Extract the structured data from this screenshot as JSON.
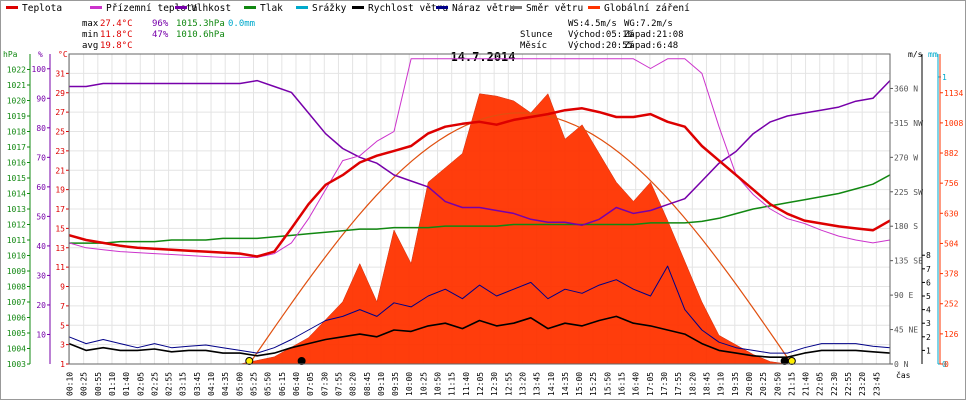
{
  "legend": [
    {
      "label": "Teplota",
      "color": "#dd0000"
    },
    {
      "label": "Přízemní teplota",
      "color": "#cc33cc"
    },
    {
      "label": "Vlhkost",
      "color": "#7700aa"
    },
    {
      "label": "Tlak",
      "color": "#118811"
    },
    {
      "label": "Srážky",
      "color": "#00aacc"
    },
    {
      "label": "Rychlost větru",
      "color": "#000000"
    },
    {
      "label": "Náraz větru",
      "color": "#000088"
    },
    {
      "label": "Směr větru",
      "color": "#777777"
    },
    {
      "label": "Globální záření",
      "color": "#ff3300"
    }
  ],
  "stats": {
    "max_label": "max",
    "max_temp": "27.4°C",
    "max_hum": "96%",
    "max_press": "1015.3hPa",
    "rain": "0.0mm",
    "min_label": "min",
    "min_temp": "11.8°C",
    "min_hum": "47%",
    "min_press": "1010.6hPa",
    "avg_label": "avg",
    "avg_temp": "19.8°C"
  },
  "wind_info": {
    "ws": "WS:4.5m/s",
    "wg": "WG:7.2m/s"
  },
  "sun_info": {
    "label": "Slunce",
    "rise": "Východ:05:16",
    "set": "Západ:21:08"
  },
  "moon_info": {
    "label": "Měsíc",
    "rise": "Východ:20:55",
    "set": "Západ:6:48"
  },
  "colors": {
    "temp": "#dd0000",
    "ground": "#cc33cc",
    "hum": "#7700aa",
    "press": "#118811",
    "rain": "#00aacc",
    "wind": "#000000",
    "gust": "#000088",
    "dir": "#777777",
    "rad": "#ff3300"
  },
  "chart_data": {
    "type": "line",
    "title": "14.7.2014",
    "x_label": "čas",
    "x_ticks": [
      "00:10",
      "00:25",
      "00:55",
      "01:10",
      "01:40",
      "02:05",
      "02:25",
      "02:55",
      "03:15",
      "03:45",
      "04:10",
      "04:35",
      "05:00",
      "05:25",
      "05:50",
      "06:15",
      "06:40",
      "07:05",
      "07:30",
      "07:55",
      "08:20",
      "08:45",
      "09:10",
      "09:35",
      "10:00",
      "10:25",
      "10:50",
      "11:15",
      "11:40",
      "12:05",
      "12:30",
      "12:55",
      "13:20",
      "13:45",
      "14:10",
      "14:35",
      "15:00",
      "15:25",
      "15:50",
      "16:15",
      "16:40",
      "17:05",
      "17:30",
      "17:55",
      "18:20",
      "18:45",
      "19:10",
      "19:35",
      "20:00",
      "20:25",
      "20:50",
      "21:15",
      "21:40",
      "22:05",
      "22:30",
      "22:55",
      "23:20",
      "23:45"
    ],
    "axes": {
      "pressure_hPa": {
        "label": "hPa",
        "ticks": [
          1003,
          1004,
          1005,
          1006,
          1007,
          1008,
          1009,
          1010,
          1011,
          1012,
          1013,
          1014,
          1015,
          1016,
          1017,
          1018,
          1019,
          1020,
          1021,
          1022
        ],
        "range": [
          1003,
          1023
        ]
      },
      "humidity_pct": {
        "label": "%",
        "ticks": [
          10,
          20,
          30,
          40,
          50,
          60,
          70,
          80,
          90,
          100
        ],
        "range": [
          0,
          105
        ]
      },
      "temperature_C": {
        "label": "°C",
        "ticks": [
          1,
          3,
          5,
          7,
          9,
          11,
          13,
          15,
          17,
          19,
          21,
          23,
          25,
          27,
          29,
          31
        ],
        "range": [
          1,
          33
        ]
      },
      "wind_ms": {
        "label": "m/s",
        "ticks": [
          1,
          2,
          3,
          4,
          5,
          6,
          7,
          8
        ],
        "range": [
          0,
          22.8
        ]
      },
      "rain_mm": {
        "label": "mm",
        "ticks": [
          0,
          1
        ],
        "range": [
          0,
          1.08
        ]
      },
      "radiation_Wm2": {
        "ticks": [
          0,
          126,
          252,
          378,
          504,
          630,
          756,
          882,
          1008,
          1134
        ],
        "range": [
          0,
          1296
        ]
      },
      "direction": {
        "ticks": [
          {
            "v": 0,
            "l": "0 N"
          },
          {
            "v": 45,
            "l": "45 NE"
          },
          {
            "v": 90,
            "l": "90 E"
          },
          {
            "v": 135,
            "l": "135 SE"
          },
          {
            "v": 180,
            "l": "180 S"
          },
          {
            "v": 225,
            "l": "225 SW"
          },
          {
            "v": 270,
            "l": "270 W"
          },
          {
            "v": 315,
            "l": "315 NW"
          },
          {
            "v": 360,
            "l": "360 N"
          }
        ],
        "range": [
          0,
          405
        ]
      }
    },
    "series": [
      {
        "name": "Teplota",
        "unit": "°C",
        "hours": [
          0,
          0.5,
          1,
          1.5,
          2,
          2.5,
          3,
          3.5,
          4,
          4.5,
          5,
          5.5,
          6,
          6.5,
          7,
          7.5,
          8,
          8.5,
          9,
          9.5,
          10,
          10.5,
          11,
          11.5,
          12,
          12.5,
          13,
          13.5,
          14,
          14.5,
          15,
          15.5,
          16,
          16.5,
          17,
          17.5,
          18,
          18.5,
          19,
          19.5,
          20,
          20.5,
          21,
          21.5,
          22,
          22.5,
          23,
          23.5,
          24
        ],
        "values": [
          14.3,
          13.8,
          13.5,
          13.2,
          13.0,
          12.9,
          12.8,
          12.7,
          12.6,
          12.5,
          12.4,
          12.1,
          12.6,
          15.0,
          17.5,
          19.5,
          20.5,
          21.8,
          22.5,
          23.0,
          23.5,
          24.8,
          25.5,
          25.8,
          26.0,
          25.7,
          26.2,
          26.5,
          26.8,
          27.2,
          27.4,
          27.0,
          26.5,
          26.5,
          26.8,
          26.0,
          25.5,
          23.5,
          22.0,
          20.5,
          19.0,
          17.5,
          16.5,
          15.8,
          15.5,
          15.2,
          15.0,
          14.8,
          15.8
        ]
      },
      {
        "name": "Přízemní teplota",
        "unit": "°C",
        "hours": [
          0,
          0.5,
          1,
          1.5,
          2,
          2.5,
          3,
          3.5,
          4,
          4.5,
          5,
          5.5,
          6,
          6.5,
          7,
          7.5,
          8,
          8.5,
          9,
          9.5,
          10,
          10.5,
          11,
          11.5,
          12,
          12.5,
          13,
          13.5,
          14,
          14.5,
          15,
          15.5,
          16,
          16.5,
          17,
          17.5,
          18,
          18.5,
          19,
          19.5,
          20,
          20.5,
          21,
          21.5,
          22,
          22.5,
          23,
          23.5,
          24
        ],
        "values": [
          13.5,
          13.0,
          12.8,
          12.6,
          12.5,
          12.4,
          12.3,
          12.2,
          12.1,
          12.0,
          12.0,
          12.0,
          12.4,
          13.5,
          16.0,
          19.0,
          22.0,
          22.5,
          24.0,
          25.0,
          32.5,
          32.5,
          32.5,
          32.5,
          32.5,
          32.5,
          32.5,
          32.5,
          32.5,
          32.5,
          32.5,
          32.5,
          32.5,
          32.5,
          31.5,
          32.5,
          32.5,
          31.0,
          25.5,
          20.5,
          18.5,
          17.0,
          16.0,
          15.5,
          14.8,
          14.2,
          13.8,
          13.5,
          13.8
        ]
      },
      {
        "name": "Vlhkost",
        "unit": "%",
        "hours": [
          0,
          0.5,
          1,
          1.5,
          2,
          2.5,
          3,
          3.5,
          4,
          4.5,
          5,
          5.5,
          6,
          6.5,
          7,
          7.5,
          8,
          8.5,
          9,
          9.5,
          10,
          10.5,
          11,
          11.5,
          12,
          12.5,
          13,
          13.5,
          14,
          14.5,
          15,
          15.5,
          16,
          16.5,
          17,
          17.5,
          18,
          18.5,
          19,
          19.5,
          20,
          20.5,
          21,
          21.5,
          22,
          22.5,
          23,
          23.5,
          24
        ],
        "values": [
          94,
          94,
          95,
          95,
          95,
          95,
          95,
          95,
          95,
          95,
          95,
          96,
          94,
          92,
          85,
          78,
          73,
          70,
          68,
          64,
          62,
          60,
          55,
          53,
          53,
          52,
          51,
          49,
          48,
          48,
          47,
          49,
          53,
          51,
          52,
          54,
          56,
          62,
          68,
          72,
          78,
          82,
          84,
          85,
          86,
          87,
          89,
          90,
          96
        ]
      },
      {
        "name": "Tlak",
        "unit": "hPa",
        "hours": [
          0,
          0.5,
          1,
          1.5,
          2,
          2.5,
          3,
          3.5,
          4,
          4.5,
          5,
          5.5,
          6,
          6.5,
          7,
          7.5,
          8,
          8.5,
          9,
          9.5,
          10,
          10.5,
          11,
          11.5,
          12,
          12.5,
          13,
          13.5,
          14,
          14.5,
          15,
          15.5,
          16,
          16.5,
          17,
          17.5,
          18,
          18.5,
          19,
          19.5,
          20,
          20.5,
          21,
          21.5,
          22,
          22.5,
          23,
          23.5,
          24
        ],
        "values": [
          1010.8,
          1010.8,
          1010.8,
          1010.9,
          1010.9,
          1010.9,
          1011.0,
          1011.0,
          1011.0,
          1011.1,
          1011.1,
          1011.1,
          1011.2,
          1011.3,
          1011.4,
          1011.5,
          1011.6,
          1011.7,
          1011.7,
          1011.8,
          1011.8,
          1011.8,
          1011.9,
          1011.9,
          1011.9,
          1011.9,
          1012.0,
          1012.0,
          1012.0,
          1012.0,
          1012.0,
          1012.0,
          1012.0,
          1012.0,
          1012.1,
          1012.1,
          1012.1,
          1012.2,
          1012.4,
          1012.7,
          1013.0,
          1013.2,
          1013.4,
          1013.6,
          1013.8,
          1014.0,
          1014.3,
          1014.6,
          1015.2
        ]
      },
      {
        "name": "Rychlost větru",
        "unit": "m/s",
        "hours": [
          0,
          0.5,
          1,
          1.5,
          2,
          2.5,
          3,
          3.5,
          4,
          4.5,
          5,
          5.5,
          6,
          6.5,
          7,
          7.5,
          8,
          8.5,
          9,
          9.5,
          10,
          10.5,
          11,
          11.5,
          12,
          12.5,
          13,
          13.5,
          14,
          14.5,
          15,
          15.5,
          16,
          16.5,
          17,
          17.5,
          18,
          18.5,
          19,
          19.5,
          20,
          20.5,
          21,
          21.5,
          22,
          22.5,
          23,
          23.5,
          24
        ],
        "values": [
          1.5,
          1.0,
          1.2,
          1.0,
          1.0,
          1.1,
          0.9,
          1.0,
          1.0,
          0.8,
          0.8,
          0.6,
          0.8,
          1.2,
          1.5,
          1.8,
          2.0,
          2.2,
          2.0,
          2.5,
          2.4,
          2.8,
          3.0,
          2.6,
          3.2,
          2.8,
          3.0,
          3.4,
          2.6,
          3.0,
          2.8,
          3.2,
          3.5,
          3.0,
          2.8,
          2.5,
          2.2,
          1.5,
          1.0,
          0.8,
          0.6,
          0.5,
          0.5,
          0.8,
          1.0,
          1.0,
          1.0,
          0.9,
          0.8
        ]
      },
      {
        "name": "Náraz větru",
        "unit": "m/s",
        "hours": [
          0,
          0.5,
          1,
          1.5,
          2,
          2.5,
          3,
          3.5,
          4,
          4.5,
          5,
          5.5,
          6,
          6.5,
          7,
          7.5,
          8,
          8.5,
          9,
          9.5,
          10,
          10.5,
          11,
          11.5,
          12,
          12.5,
          13,
          13.5,
          14,
          14.5,
          15,
          15.5,
          16,
          16.5,
          17,
          17.5,
          18,
          18.5,
          19,
          19.5,
          20,
          20.5,
          21,
          21.5,
          22,
          22.5,
          23,
          23.5,
          24
        ],
        "values": [
          2.0,
          1.5,
          1.8,
          1.5,
          1.2,
          1.5,
          1.2,
          1.3,
          1.4,
          1.2,
          1.0,
          0.8,
          1.2,
          1.8,
          2.5,
          3.2,
          3.5,
          4.0,
          3.5,
          4.5,
          4.2,
          5.0,
          5.5,
          4.8,
          5.8,
          5.0,
          5.5,
          6.0,
          4.8,
          5.5,
          5.2,
          5.8,
          6.2,
          5.5,
          5.0,
          7.2,
          4.0,
          2.5,
          1.6,
          1.2,
          1.0,
          0.8,
          0.8,
          1.2,
          1.5,
          1.5,
          1.5,
          1.3,
          1.2
        ]
      },
      {
        "name": "Globální záření",
        "unit": "W/m2",
        "hours": [
          5,
          6,
          7,
          8,
          8.5,
          9,
          9.5,
          10,
          10.5,
          11,
          11.5,
          12,
          12.5,
          13,
          13.5,
          14,
          14.5,
          15,
          15.5,
          16,
          16.5,
          17,
          17.5,
          18,
          18.5,
          19,
          19.5,
          20,
          20.5,
          21
        ],
        "values": [
          0,
          30,
          110,
          260,
          420,
          260,
          560,
          420,
          760,
          820,
          880,
          1130,
          1120,
          1100,
          1050,
          1130,
          940,
          1000,
          880,
          760,
          680,
          760,
          600,
          430,
          260,
          120,
          80,
          40,
          10,
          0
        ]
      }
    ],
    "theoretical_radiation_peak_Wm2": 1050,
    "sunrise_hour": 5.27,
    "sunset_hour": 21.13
  }
}
